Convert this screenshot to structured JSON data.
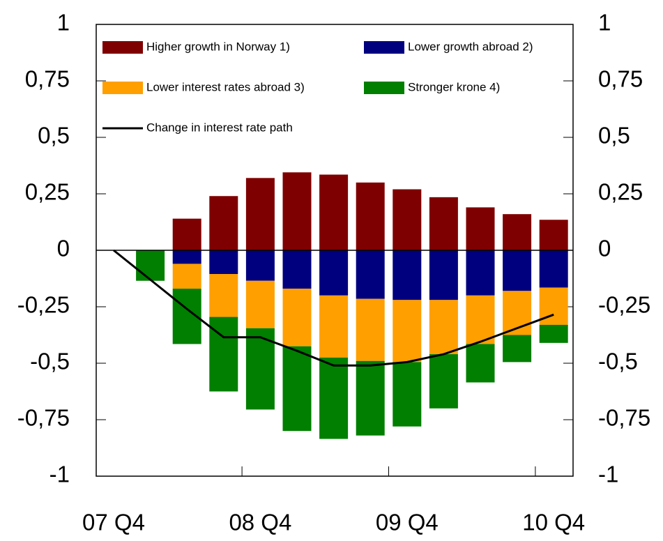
{
  "chart_data": {
    "type": "bar",
    "stacked": true,
    "categories": [
      "07 Q4",
      null,
      null,
      null,
      "08 Q4",
      null,
      null,
      null,
      "09 Q4",
      null,
      null,
      null,
      "10 Q4"
    ],
    "ylim": [
      -1,
      1
    ],
    "yticks": [
      -1,
      {
        "value": -0.75,
        "label": "-0,75"
      },
      {
        "value": -0.5,
        "label": "-0,5"
      },
      {
        "value": -0.25,
        "label": "-0,25"
      },
      0,
      {
        "value": 0.25,
        "label": "0,25"
      },
      {
        "value": 0.5,
        "label": "0,5"
      },
      {
        "value": 0.75,
        "label": "0,75"
      },
      1
    ],
    "series": [
      {
        "name": "Higher growth in Norway 1)",
        "color": "#7f0000",
        "values": [
          null,
          null,
          0.14,
          0.24,
          0.32,
          0.345,
          0.335,
          0.3,
          0.27,
          0.235,
          0.19,
          0.16,
          0.135
        ]
      },
      {
        "name": "Lower growth abroad 2)",
        "color": "#00007f",
        "values": [
          null,
          null,
          -0.06,
          -0.105,
          -0.135,
          -0.17,
          -0.2,
          -0.215,
          -0.22,
          -0.22,
          -0.2,
          -0.18,
          -0.165
        ]
      },
      {
        "name": "Lower interest rates abroad 3)",
        "color": "#ff9f00",
        "values": [
          null,
          null,
          -0.11,
          -0.19,
          -0.21,
          -0.255,
          -0.275,
          -0.275,
          -0.275,
          -0.24,
          -0.215,
          -0.195,
          -0.165
        ]
      },
      {
        "name": "Stronger krone 4)",
        "color": "#007f00",
        "values": [
          null,
          -0.135,
          -0.245,
          -0.33,
          -0.36,
          -0.375,
          -0.36,
          -0.33,
          -0.285,
          -0.24,
          -0.17,
          -0.12,
          -0.08
        ]
      },
      {
        "name": "Change in interest rate path",
        "type": "line",
        "color": "#000000",
        "values": [
          0,
          -0.13,
          -0.26,
          -0.385,
          -0.385,
          -0.445,
          -0.51,
          -0.51,
          -0.495,
          -0.46,
          -0.405,
          -0.345,
          -0.285
        ]
      }
    ]
  }
}
